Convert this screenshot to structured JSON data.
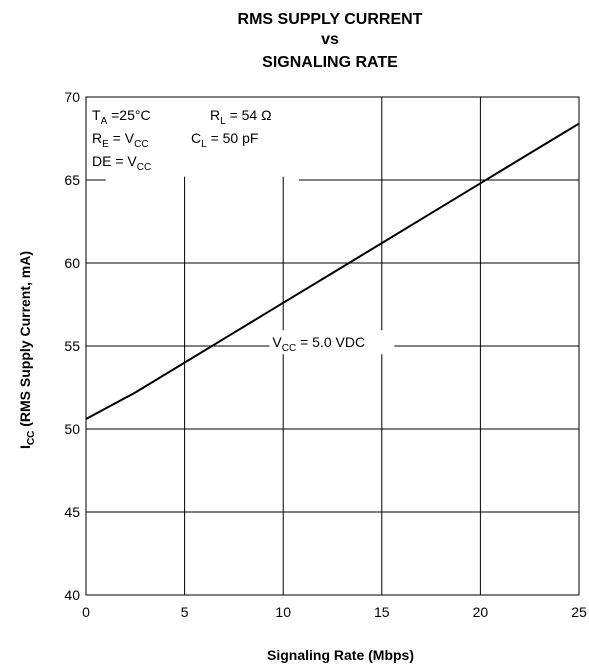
{
  "chart_data": {
    "type": "line",
    "title": [
      "RMS SUPPLY CURRENT",
      "vs",
      "SIGNALING RATE"
    ],
    "xlabel": "Signaling Rate (Mbps)",
    "ylabel": {
      "main": "I",
      "sub": "CC",
      "rest": " (RMS Supply Current, mA)"
    },
    "xlim": [
      0,
      25
    ],
    "ylim": [
      40,
      70
    ],
    "x_ticks": [
      "0",
      "5",
      "10",
      "15",
      "20",
      "25"
    ],
    "y_ticks": [
      "40",
      "45",
      "50",
      "55",
      "60",
      "65",
      "70"
    ],
    "grid": true,
    "series": [
      {
        "name": "VCC = 5.0 VDC",
        "x": [
          0,
          2.5,
          5,
          7.5,
          10,
          12.5,
          15,
          17.5,
          20,
          22.5,
          25
        ],
        "y": [
          50.6,
          52.2,
          54.0,
          55.8,
          57.6,
          59.4,
          61.2,
          63.0,
          64.8,
          66.6,
          68.4
        ]
      }
    ],
    "series_label": {
      "pre": "V",
      "sub": "CC",
      "post": " = 5.0 VDC"
    },
    "conditions": [
      {
        "pre": "T",
        "sub": "A",
        "post": " =25°C"
      },
      {
        "pre": "R",
        "sub": "L",
        "post": " = 54 Ω"
      },
      {
        "pre": "R",
        "sub": "E",
        "post": " = V",
        "sub2": "CC"
      },
      {
        "pre": "C",
        "sub": "L",
        "post": " = 50 pF"
      },
      {
        "pre": "DE = V",
        "sub": "CC",
        "post": ""
      }
    ]
  }
}
